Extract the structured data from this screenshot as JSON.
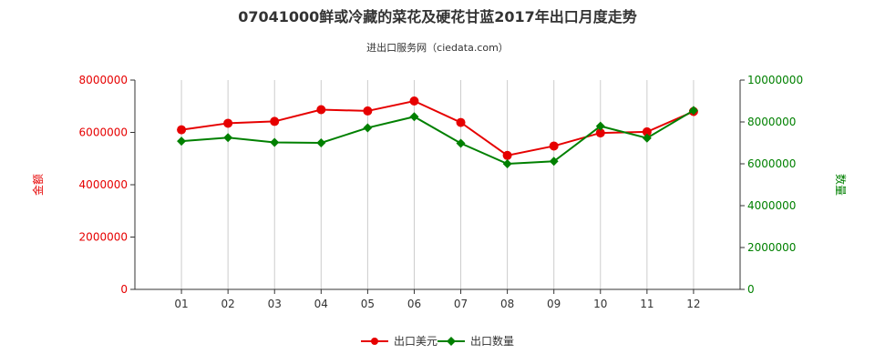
{
  "chart_data": {
    "type": "line",
    "title": "07041000鲜或冷藏的菜花及硬花甘蓝2017年出口月度走势",
    "subtitle": "进出口服务网（ciedata.com）",
    "categories": [
      "01",
      "02",
      "03",
      "04",
      "05",
      "06",
      "07",
      "08",
      "09",
      "10",
      "11",
      "12"
    ],
    "y_left": {
      "label": "金额",
      "ticks": [
        "0",
        "2000000",
        "4000000",
        "6000000",
        "8000000"
      ],
      "range": [
        0,
        8000000
      ]
    },
    "y_right": {
      "label": "数量",
      "ticks": [
        "0",
        "2000000",
        "4000000",
        "6000000",
        "8000000",
        "10000000"
      ],
      "range": [
        0,
        10000000
      ]
    },
    "series": [
      {
        "name": "出口美元",
        "axis": "left",
        "color": "#e60000",
        "values": [
          6100000,
          6350000,
          6420000,
          6870000,
          6820000,
          7200000,
          6380000,
          5120000,
          5480000,
          5980000,
          6020000,
          6800000
        ]
      },
      {
        "name": "出口数量",
        "axis": "right",
        "color": "#008000",
        "values": [
          7080000,
          7250000,
          7020000,
          7000000,
          7720000,
          8250000,
          6980000,
          6000000,
          6120000,
          7800000,
          7230000,
          8550000
        ]
      }
    ],
    "grid": "vertical",
    "legend_position": "bottom-center",
    "colors": {
      "left_axis": "#e60000",
      "right_axis": "#008000",
      "grid": "#cccccc"
    }
  }
}
